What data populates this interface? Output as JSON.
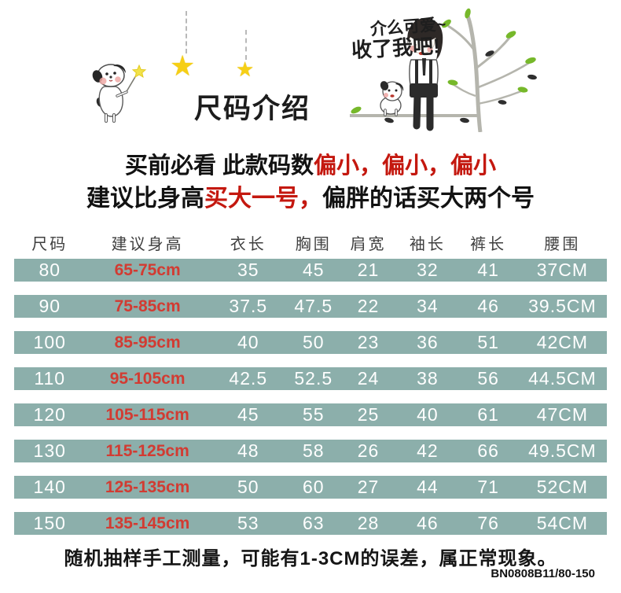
{
  "page_title": "尺码介绍",
  "hero": {
    "speech_line1": "介么可爱~",
    "speech_line2": "收了我吧!",
    "star_glyph": "★"
  },
  "warning": {
    "line1_black": "买前必看 此款码数",
    "line1_red": "偏小，偏小，偏小",
    "line2_black_prefix": "建议比身高",
    "line2_red": "买大一号，",
    "line2_black_suffix": "偏胖的话买大两个号"
  },
  "table": {
    "headers": [
      "尺码",
      "建议身高",
      "衣长",
      "胸围",
      "肩宽",
      "袖长",
      "裤长",
      "腰围"
    ],
    "rows": [
      [
        "80",
        "65-75cm",
        "35",
        "45",
        "21",
        "32",
        "41",
        "37CM"
      ],
      [
        "90",
        "75-85cm",
        "37.5",
        "47.5",
        "22",
        "34",
        "46",
        "39.5CM"
      ],
      [
        "100",
        "85-95cm",
        "40",
        "50",
        "23",
        "36",
        "51",
        "42CM"
      ],
      [
        "110",
        "95-105cm",
        "42.5",
        "52.5",
        "24",
        "38",
        "56",
        "44.5CM"
      ],
      [
        "120",
        "105-115cm",
        "45",
        "55",
        "25",
        "40",
        "61",
        "47CM"
      ],
      [
        "130",
        "115-125cm",
        "48",
        "58",
        "26",
        "42",
        "66",
        "49.5CM"
      ],
      [
        "140",
        "125-135cm",
        "50",
        "60",
        "27",
        "44",
        "71",
        "52CM"
      ],
      [
        "150",
        "135-145cm",
        "53",
        "63",
        "28",
        "46",
        "76",
        "54CM"
      ]
    ]
  },
  "footer": {
    "note": "随机抽样手工测量，可能有1-3CM的误差，属正常现象。",
    "product_code": "BN0808B11/80-150"
  },
  "colors": {
    "row_bg": "#8cafab",
    "row_text": "#ffffff",
    "height_red": "#d23b32",
    "warning_red": "#c4180f",
    "header_text": "#3f3f3f",
    "star_yellow": "#f6cf15",
    "leaf_green": "#76b82a",
    "branch_gray": "#b5b5ad"
  }
}
